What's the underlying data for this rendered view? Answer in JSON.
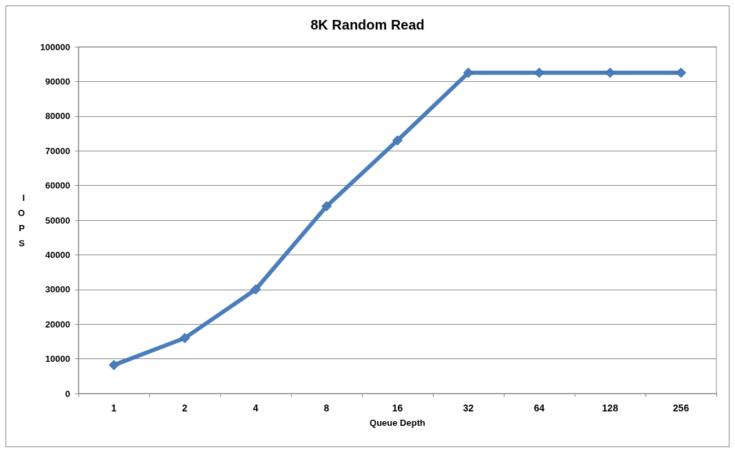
{
  "chart_data": {
    "type": "line",
    "title": "8K Random Read",
    "xlabel": "Queue Depth",
    "ylabel": "IOPS",
    "categories": [
      "1",
      "2",
      "4",
      "8",
      "16",
      "32",
      "64",
      "128",
      "256"
    ],
    "series": [
      {
        "color": "#4a7ebb",
        "values": [
          8200,
          16000,
          30000,
          54000,
          73000,
          92500,
          92500,
          92500,
          92500
        ]
      }
    ],
    "ylim": [
      0,
      100000
    ],
    "yticks": [
      0,
      10000,
      20000,
      30000,
      40000,
      50000,
      60000,
      70000,
      80000,
      90000,
      100000
    ],
    "grid": "y",
    "marker": "diamond",
    "line_style": "solid"
  }
}
